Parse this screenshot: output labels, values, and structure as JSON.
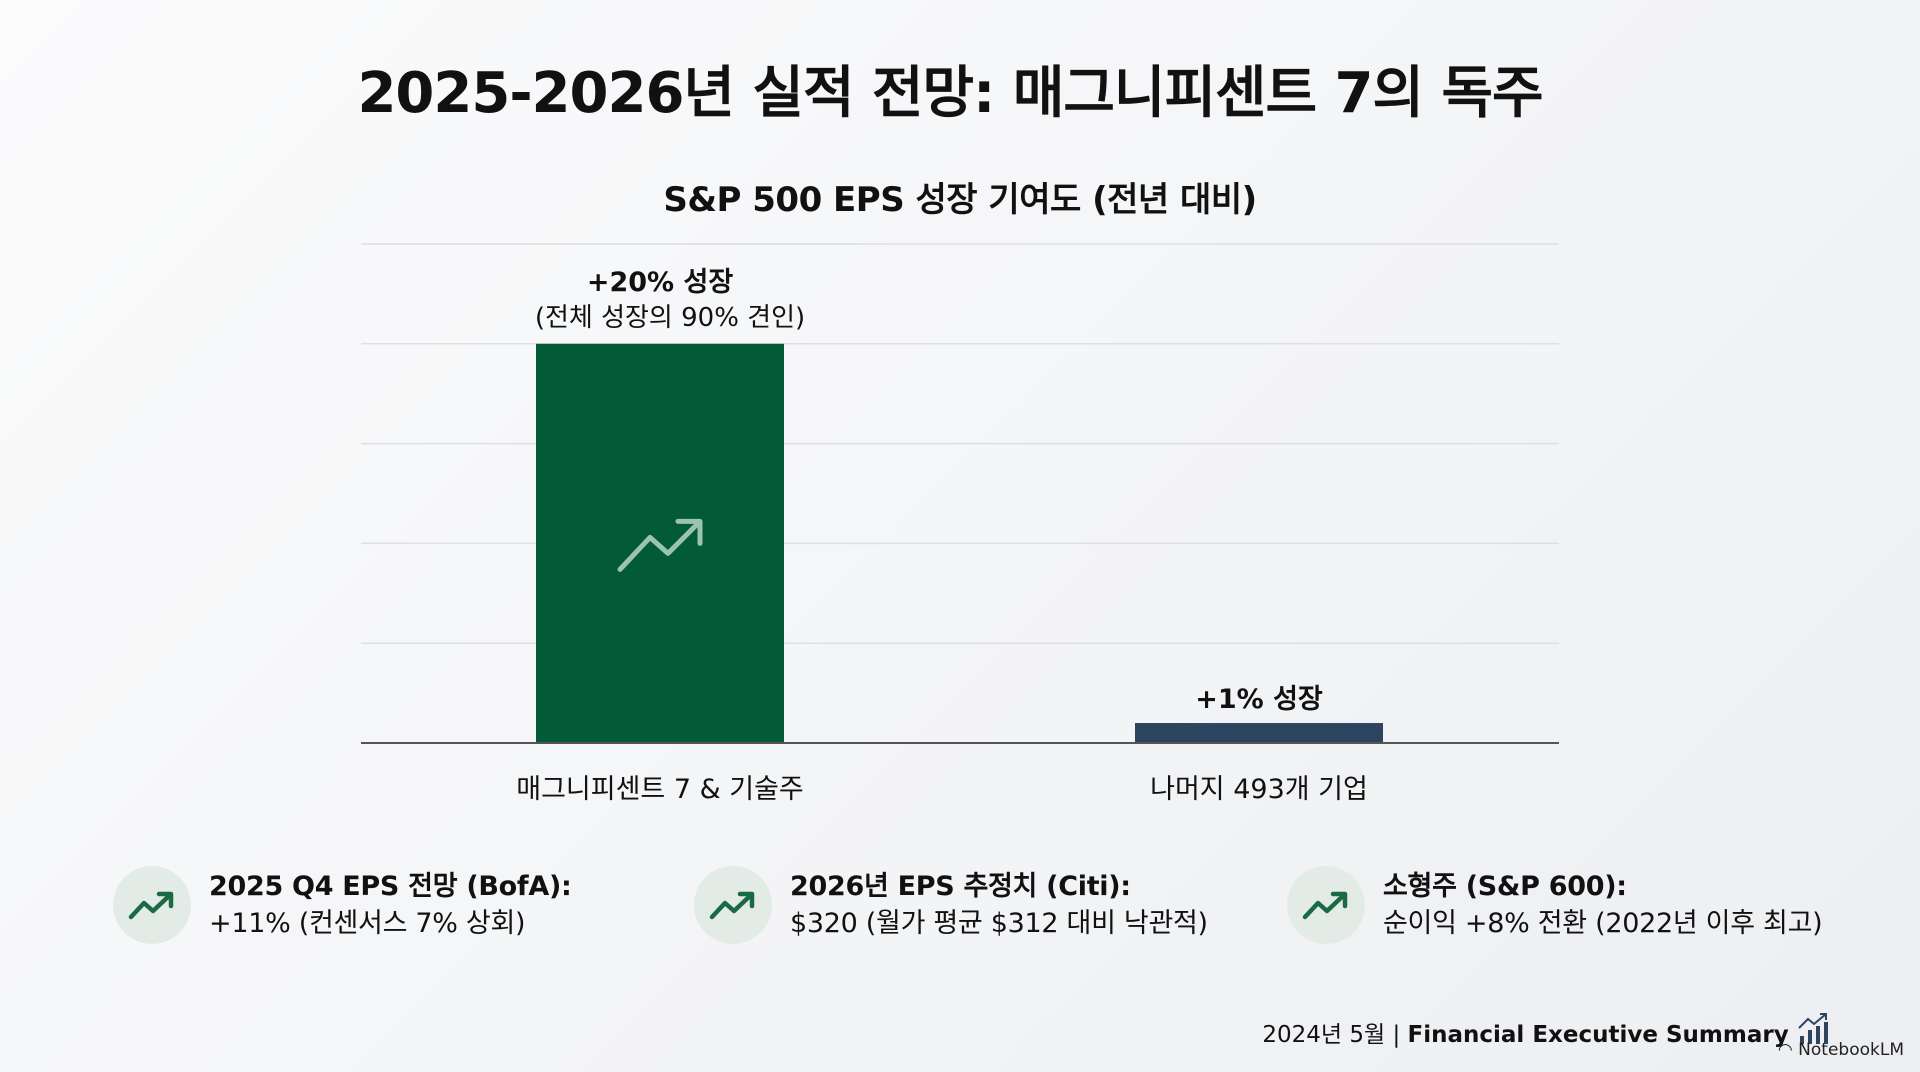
{
  "title": "2025-2026년 실적 전망: 매그니피센트 7의 독주",
  "chart_data": {
    "type": "bar",
    "title": "S&P 500 EPS 성장 기여도 (전년 대비)",
    "categories": [
      "매그니피센트 7 & 기술주",
      "나머지 493개 기업"
    ],
    "values": [
      20,
      1
    ],
    "unit": "%",
    "ylim": [
      0,
      25
    ],
    "grid": true,
    "data_labels": [
      {
        "main": "+20% 성장",
        "sub": "(전체 성장의 90% 견인)"
      },
      {
        "main": "+1% 성장",
        "sub": ""
      }
    ],
    "colors": [
      "#035a37",
      "#2d4461"
    ]
  },
  "cards": [
    {
      "icon": "trend-up-icon",
      "heading": "2025 Q4 EPS 전망 (BofA):",
      "text": "+11% (컨센서스 7% 상회)"
    },
    {
      "icon": "trend-up-icon",
      "heading": "2026년 EPS 추정치 (Citi):",
      "text": "$320 (월가 평균 $312 대비 낙관적)"
    },
    {
      "icon": "trend-up-icon",
      "heading": "소형주 (S&P 600):",
      "text": "순이익 +8% 전환 (2022년 이후 최고)"
    }
  ],
  "footer": {
    "date": "2024년 5월",
    "separator": "|",
    "label": "Financial Executive Summary",
    "brand": "NotebookLM"
  },
  "accent": "#1a6b45"
}
